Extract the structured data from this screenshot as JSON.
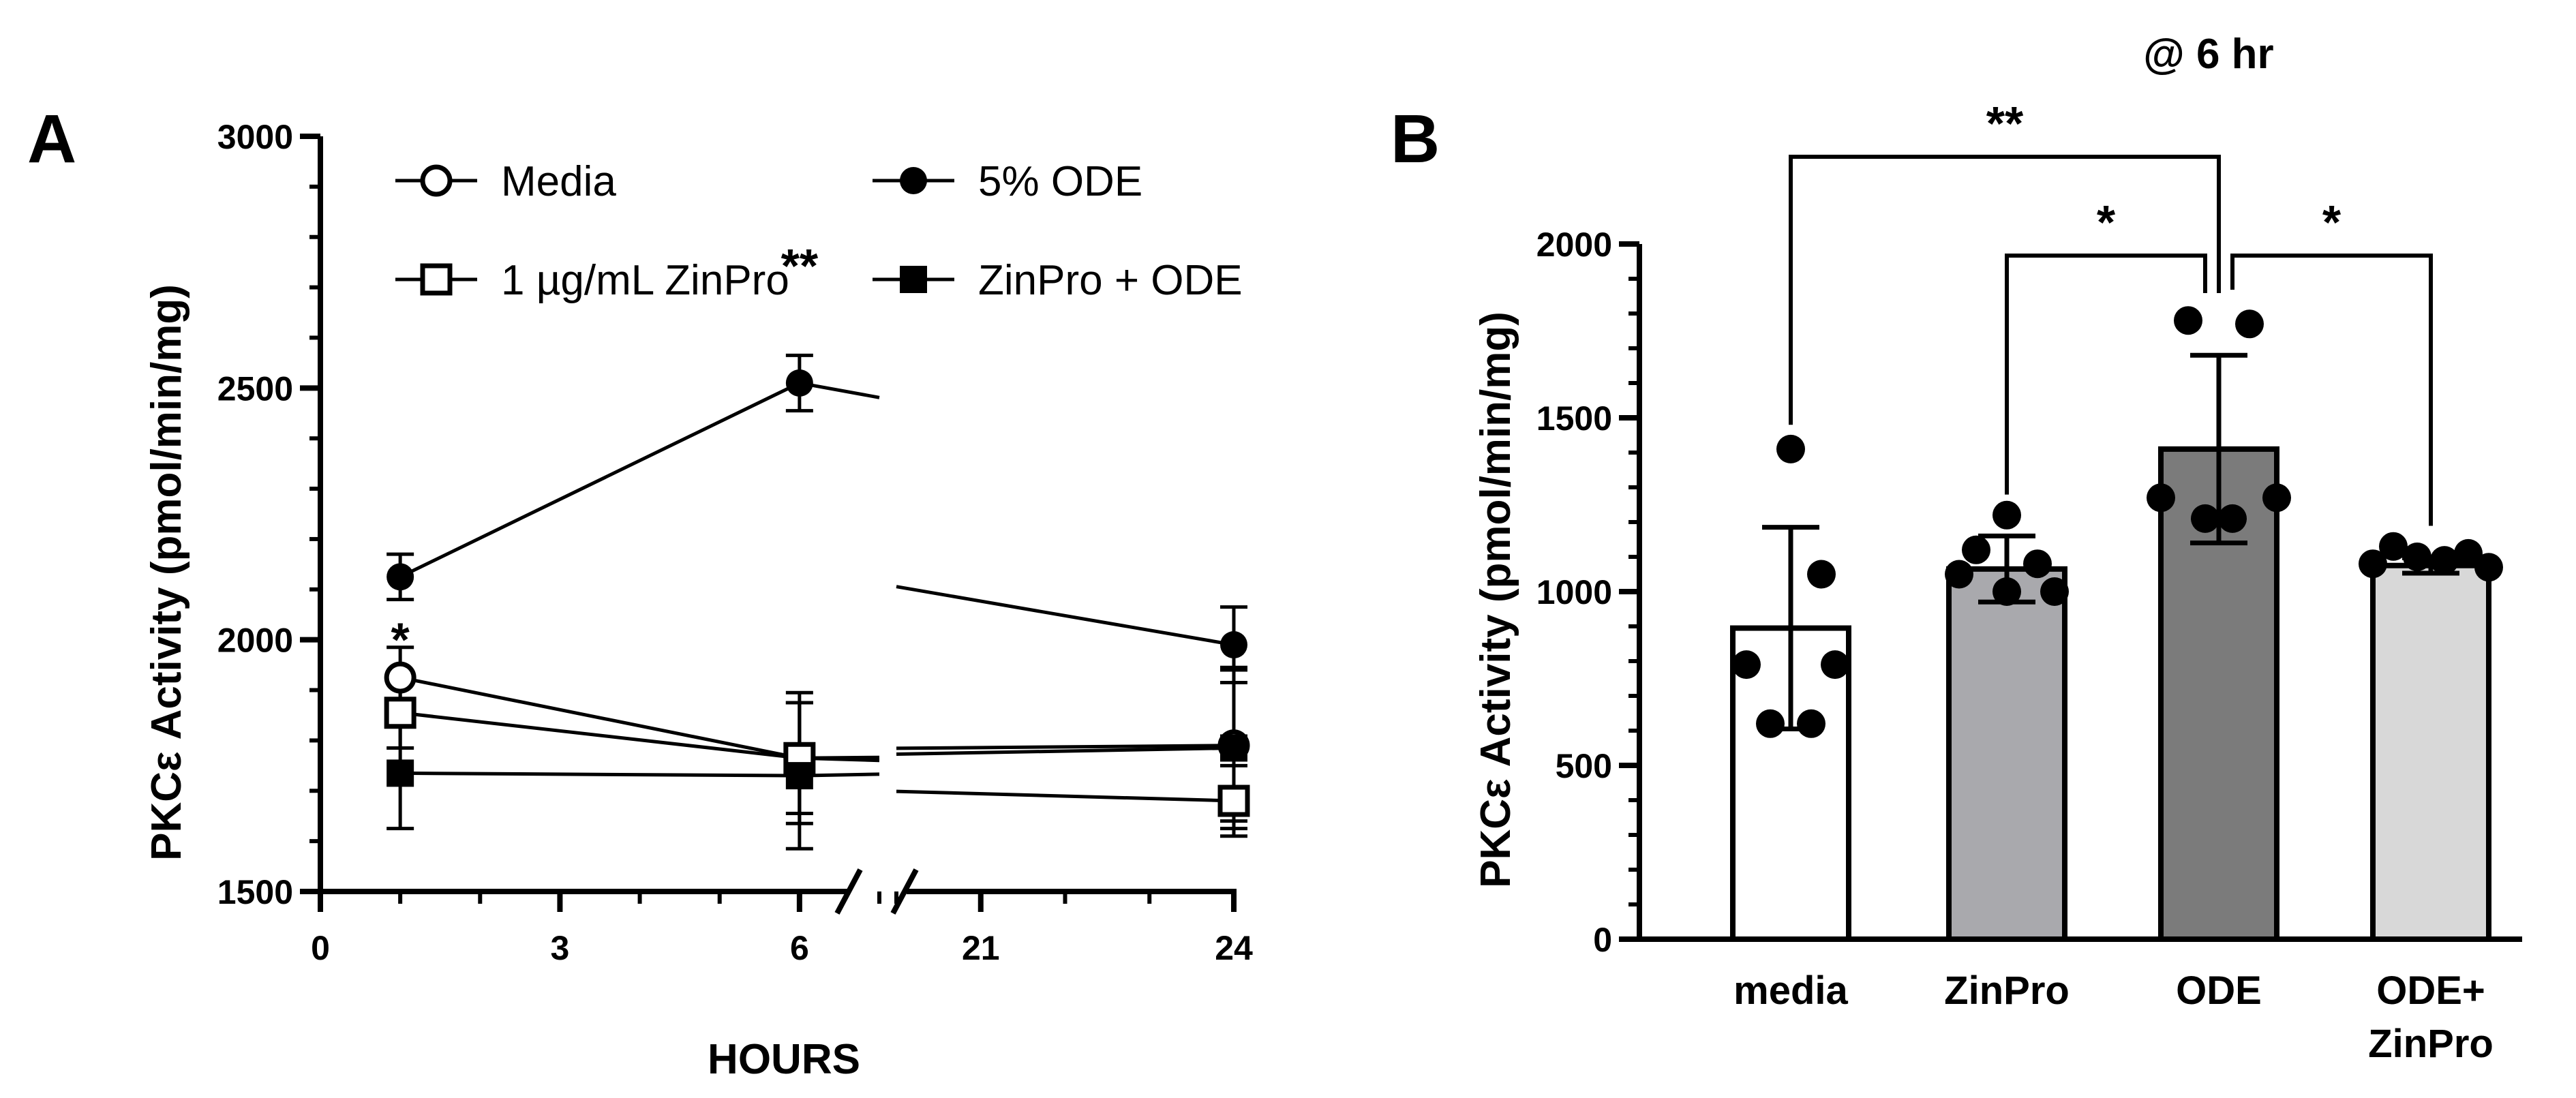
{
  "chart_data": [
    {
      "panel": "A",
      "type": "line",
      "title": "",
      "xlabel": "HOURS",
      "ylabel": "PKCε Activity (pmol/min/mg)",
      "xlim": [
        0,
        24
      ],
      "ylim": [
        1500,
        3000
      ],
      "x_axis_break": [
        7,
        20
      ],
      "x_ticks": [
        "0",
        "3",
        "6",
        "21",
        "24"
      ],
      "y_ticks": [
        "1500",
        "2000",
        "2500",
        "3000"
      ],
      "grid": false,
      "legend_position": "top",
      "x": [
        1,
        6,
        24
      ],
      "series": [
        {
          "name": "Media",
          "marker": "open-circle",
          "values": [
            1925,
            1765,
            1790
          ],
          "errors": [
            60,
            130,
            150
          ]
        },
        {
          "name": "5% ODE",
          "marker": "filled-circle",
          "values": [
            2125,
            2510,
            1990
          ],
          "errors": [
            45,
            55,
            75
          ]
        },
        {
          "name": "1 µg/mL ZinPro",
          "marker": "open-square",
          "values": [
            1855,
            1765,
            1680
          ],
          "errors": [
            70,
            110,
            70
          ]
        },
        {
          "name": "ZinPro + ODE",
          "marker": "filled-square",
          "values": [
            1735,
            1730,
            1785
          ],
          "errors": [
            110,
            145,
            160
          ]
        }
      ],
      "annotations": [
        {
          "text": "*",
          "x": 1
        },
        {
          "text": "**",
          "x": 6
        }
      ]
    },
    {
      "panel": "B",
      "type": "bar",
      "title": "@ 6 hr",
      "xlabel": "",
      "ylabel": "PKCε Activity (pmol/min/mg)",
      "ylim": [
        0,
        2000
      ],
      "y_ticks": [
        "0",
        "500",
        "1000",
        "1500",
        "2000"
      ],
      "grid": false,
      "categories": [
        "media",
        "ZinPro",
        "ODE",
        "ODE+\nZinPro"
      ],
      "values": [
        895,
        1065,
        1410,
        1075
      ],
      "errors": [
        290,
        95,
        270,
        22
      ],
      "bar_colors": [
        "#ffffff",
        "#a9a9ad",
        "#7b7b7b",
        "#d8d8d8"
      ],
      "points": [
        [
          1410,
          1050,
          790,
          790,
          620,
          620
        ],
        [
          1220,
          1120,
          1080,
          1050,
          1000,
          1000
        ],
        [
          1780,
          1770,
          1270,
          1270,
          1210,
          1210
        ],
        [
          1130,
          1110,
          1100,
          1090,
          1080,
          1070
        ]
      ],
      "significance": [
        {
          "from": "media",
          "to": "ODE",
          "label": "**"
        },
        {
          "from": "ZinPro",
          "to": "ODE",
          "label": "*"
        },
        {
          "from": "ODE",
          "to": "ODE+\nZinPro",
          "label": "*"
        }
      ]
    }
  ]
}
